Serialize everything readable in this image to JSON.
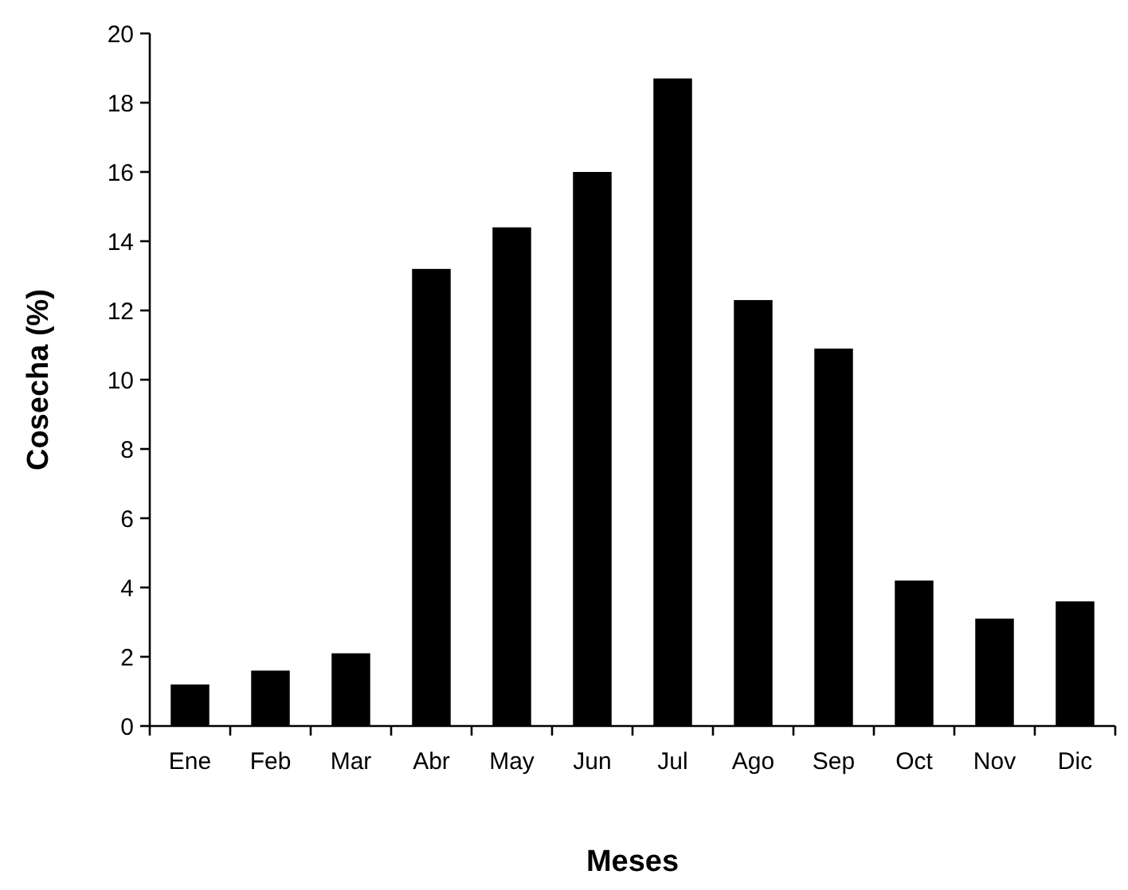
{
  "chart_data": {
    "type": "bar",
    "xlabel": "Meses",
    "ylabel": "Cosecha (%)",
    "categories": [
      "Ene",
      "Feb",
      "Mar",
      "Abr",
      "May",
      "Jun",
      "Jul",
      "Ago",
      "Sep",
      "Oct",
      "Nov",
      "Dic"
    ],
    "values": [
      1.2,
      1.6,
      2.1,
      13.2,
      14.4,
      16.0,
      18.7,
      12.3,
      10.9,
      4.2,
      3.1,
      3.6
    ],
    "color": "#000000",
    "ylim": [
      0,
      20
    ],
    "yticks": [
      0,
      2,
      4,
      6,
      8,
      10,
      12,
      14,
      16,
      18,
      20
    ],
    "grid": false
  }
}
